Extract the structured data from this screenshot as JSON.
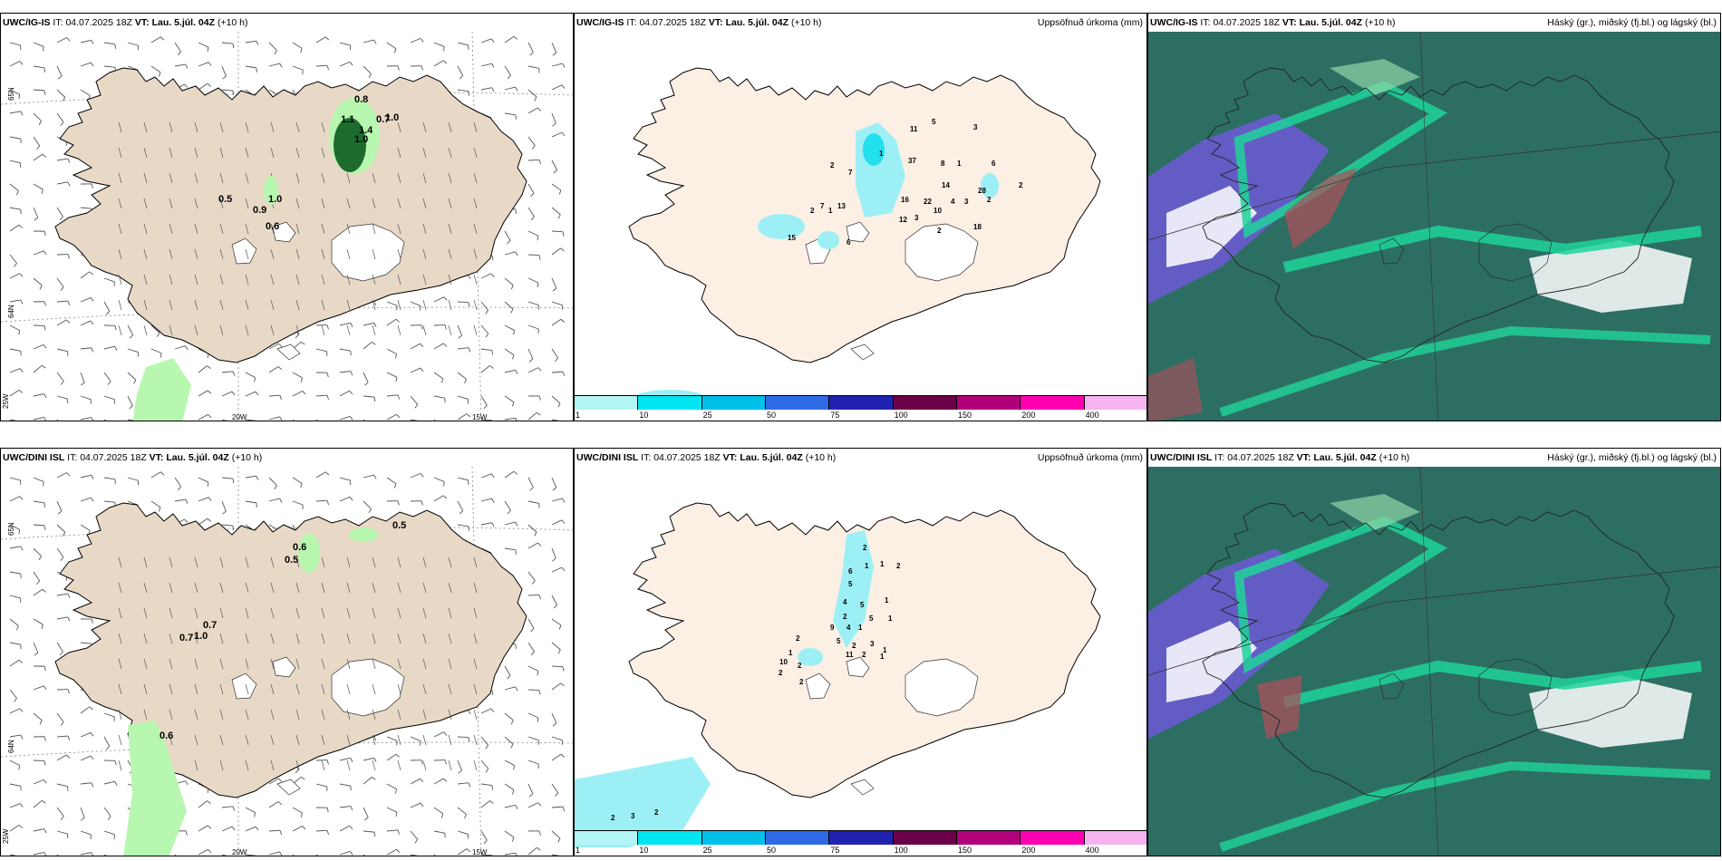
{
  "panels": [
    {
      "model": "UWC/IG-IS",
      "it_label": "IT:",
      "it_value": "04.07.2025 18Z",
      "vt_label": "VT:",
      "vt_value": "Lau. 5.júl. 04Z",
      "lead": "(+10 h)",
      "right_title": "",
      "kind": "wind",
      "axis_labels": [
        "20W",
        "15W",
        "25W",
        "65N",
        "64N"
      ],
      "precip_labels": [
        "0.8",
        "1.1",
        "0.7",
        "1.0",
        "1.4",
        "1.0",
        "0.5",
        "0.9",
        "1.0",
        "0.6"
      ]
    },
    {
      "model": "UWC/IG-IS",
      "it_label": "IT:",
      "it_value": "04.07.2025 18Z",
      "vt_label": "VT:",
      "vt_value": "Lau. 5.júl. 04Z",
      "lead": "(+10 h)",
      "right_title": "Uppsöfnuð úrkoma (mm)",
      "kind": "accum",
      "values": [
        "11",
        "5",
        "3",
        "37",
        "2",
        "1",
        "7",
        "8",
        "1",
        "6",
        "14",
        "28",
        "2",
        "16",
        "22",
        "10",
        "4",
        "3",
        "2",
        "7",
        "2",
        "1",
        "13",
        "12",
        "3",
        "2",
        "18",
        "15",
        "6"
      ]
    },
    {
      "model": "UWC/IG-IS",
      "it_label": "IT:",
      "it_value": "04.07.2025 18Z",
      "vt_label": "VT:",
      "vt_value": "Lau. 5.júl. 04Z",
      "lead": "(+10 h)",
      "right_title": "Háský (gr.), miðský (fj.bl.) og lágský (bl.)",
      "kind": "cloud"
    },
    {
      "model": "UWC/DINI ISL",
      "it_label": "IT:",
      "it_value": "04.07.2025 18Z",
      "vt_label": "VT:",
      "vt_value": "Lau. 5.júl. 04Z",
      "lead": "(+10 h)",
      "right_title": "",
      "kind": "wind",
      "axis_labels": [
        "20W",
        "15W",
        "25W",
        "65N",
        "64N"
      ],
      "precip_labels": [
        "0.6",
        "0.5",
        "0.5",
        "0.7",
        "0.7",
        "1.0",
        "0.6"
      ]
    },
    {
      "model": "UWC/DINI ISL",
      "it_label": "IT:",
      "it_value": "04.07.2025 18Z",
      "vt_label": "VT:",
      "vt_value": "Lau. 5.júl. 04Z",
      "lead": "(+10 h)",
      "right_title": "Uppsöfnuð úrkoma (mm)",
      "kind": "accum",
      "values": [
        "2",
        "6",
        "5",
        "1",
        "1",
        "2",
        "1",
        "4",
        "5",
        "1",
        "5",
        "4",
        "1",
        "2",
        "9",
        "5",
        "2",
        "1",
        "3",
        "11",
        "2",
        "1",
        "1",
        "2",
        "10",
        "2",
        "2",
        "2",
        "2",
        "3",
        "2"
      ]
    },
    {
      "model": "UWC/DINI ISL",
      "it_label": "IT:",
      "it_value": "04.07.2025 18Z",
      "vt_label": "VT:",
      "vt_value": "Lau. 5.júl. 04Z",
      "lead": "(+10 h)",
      "right_title": "Háský (gr.), miðský (fj.bl.) og lágský (bl.)",
      "kind": "cloud"
    }
  ],
  "legend": {
    "ticks": [
      "1",
      "10",
      "25",
      "50",
      "75",
      "100",
      "150",
      "200",
      "400"
    ],
    "colors": [
      "#b3f5f5",
      "#00e5f0",
      "#00bfe8",
      "#2f6ae6",
      "#2222b0",
      "#6b0048",
      "#b0007a",
      "#ff00b0",
      "#f5b3f0"
    ]
  },
  "colors": {
    "land": "#e8d9c6",
    "land_accum": "#fcefe4",
    "precip_light": "#b8f7b0",
    "precip_dark": "#1e6b2e",
    "accum_cyan": "#9cf0f5",
    "cloud_sea": "#2d6e62",
    "cloud_high": "#1fd49a",
    "cloud_mid": "#6a5ad0",
    "cloud_low": "#ffffff"
  }
}
